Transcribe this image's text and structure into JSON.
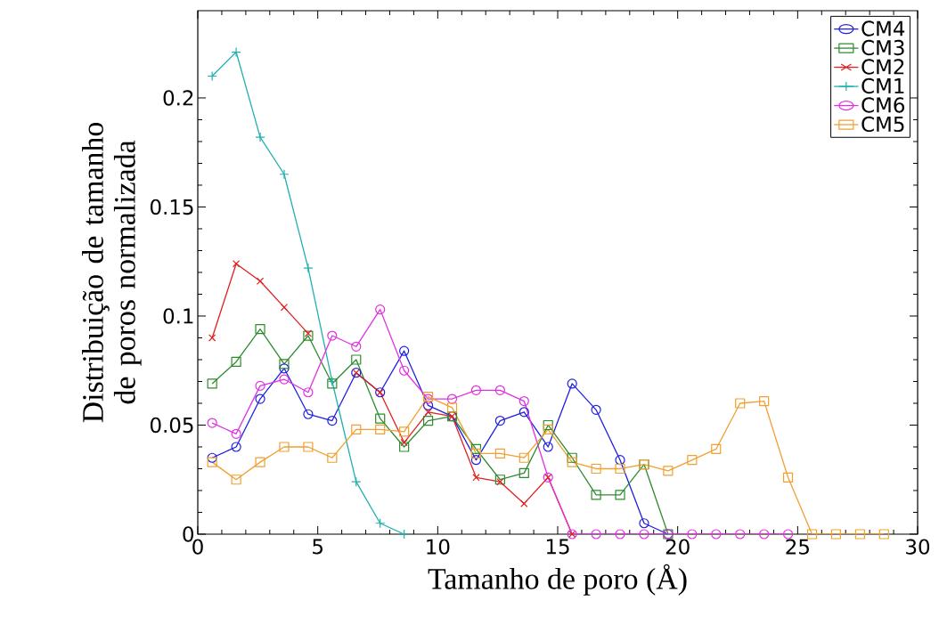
{
  "chart_data": {
    "type": "line",
    "xlabel": "Tamanho de poro (Å)",
    "ylabel": "Distribuição de tamanho de poros normalizada",
    "xlim": [
      0,
      30
    ],
    "ylim": [
      0,
      0.24
    ],
    "xticks": [
      0,
      5,
      10,
      15,
      20,
      25,
      30
    ],
    "yticks": [
      0,
      0.05,
      0.1,
      0.15,
      0.2
    ],
    "legend": "top right",
    "grid": false,
    "line_style": "solid",
    "series": [
      {
        "name": "CM4",
        "color": "#2020e0",
        "marker": "circle",
        "x": [
          0.6,
          1.6,
          2.6,
          3.6,
          4.6,
          5.6,
          6.6,
          7.6,
          8.6,
          9.6,
          10.6,
          11.6,
          12.6,
          13.6,
          14.6,
          15.6,
          16.6,
          17.6,
          18.6,
          19.6
        ],
        "values": [
          0.035,
          0.04,
          0.062,
          0.076,
          0.055,
          0.052,
          0.074,
          0.065,
          0.084,
          0.059,
          0.054,
          0.034,
          0.052,
          0.056,
          0.04,
          0.069,
          0.057,
          0.034,
          0.005,
          0
        ]
      },
      {
        "name": "CM3",
        "color": "#2e8b2e",
        "marker": "square",
        "x": [
          0.6,
          1.6,
          2.6,
          3.6,
          4.6,
          5.6,
          6.6,
          7.6,
          8.6,
          9.6,
          10.6,
          11.6,
          12.6,
          13.6,
          14.6,
          15.6,
          16.6,
          17.6,
          18.6,
          19.6
        ],
        "values": [
          0.069,
          0.079,
          0.094,
          0.078,
          0.091,
          0.069,
          0.08,
          0.053,
          0.04,
          0.052,
          0.054,
          0.039,
          0.025,
          0.028,
          0.05,
          0.035,
          0.018,
          0.018,
          0.032,
          0
        ]
      },
      {
        "name": "CM2",
        "color": "#e02020",
        "marker": "cross",
        "x": [
          0.6,
          1.6,
          2.6,
          3.6,
          4.6,
          5.6,
          6.6,
          7.6,
          8.6,
          9.6,
          10.6,
          11.6,
          12.6,
          13.6,
          14.6,
          15.6
        ],
        "values": [
          0.09,
          0.124,
          0.116,
          0.104,
          0.092,
          null,
          0.074,
          0.065,
          0.042,
          0.056,
          0.054,
          0.026,
          0.024,
          0.014,
          0.026,
          0
        ]
      },
      {
        "name": "CM1",
        "color": "#20b0b0",
        "marker": "plus",
        "x": [
          0.6,
          1.6,
          2.6,
          3.6,
          4.6,
          5.6,
          6.6,
          7.6,
          8.6
        ],
        "values": [
          0.21,
          0.221,
          0.182,
          0.165,
          0.122,
          0.07,
          0.024,
          0.005,
          0
        ]
      },
      {
        "name": "CM6",
        "color": "#e030e0",
        "marker": "circle",
        "x": [
          0.6,
          1.6,
          2.6,
          3.6,
          4.6,
          5.6,
          6.6,
          7.6,
          8.6,
          9.6,
          10.6,
          11.6,
          12.6,
          13.6,
          14.6,
          15.6,
          16.6,
          17.6,
          18.6,
          19.6,
          20.6,
          21.6,
          22.6,
          23.6,
          24.6
        ],
        "values": [
          0.051,
          0.046,
          0.068,
          0.071,
          0.065,
          0.091,
          0.086,
          0.103,
          0.075,
          0.062,
          0.062,
          0.066,
          0.066,
          0.061,
          0.026,
          0,
          0,
          0,
          0,
          0,
          0,
          0,
          0,
          0,
          0
        ]
      },
      {
        "name": "CM5",
        "color": "#f0a030",
        "marker": "square",
        "x": [
          0.6,
          1.6,
          2.6,
          3.6,
          4.6,
          5.6,
          6.6,
          7.6,
          8.6,
          9.6,
          10.6,
          11.6,
          12.6,
          13.6,
          14.6,
          15.6,
          16.6,
          17.6,
          18.6,
          19.6,
          20.6,
          21.6,
          22.6,
          23.6,
          24.6,
          25.6,
          26.6,
          27.6,
          28.6
        ],
        "values": [
          0.033,
          0.025,
          0.033,
          0.04,
          0.04,
          0.035,
          0.048,
          0.048,
          0.047,
          0.063,
          0.058,
          0.037,
          0.037,
          0.035,
          0.048,
          0.033,
          0.03,
          0.03,
          0.032,
          0.029,
          0.034,
          0.039,
          0.06,
          0.061,
          0.026,
          0,
          0,
          0,
          0
        ]
      }
    ]
  }
}
